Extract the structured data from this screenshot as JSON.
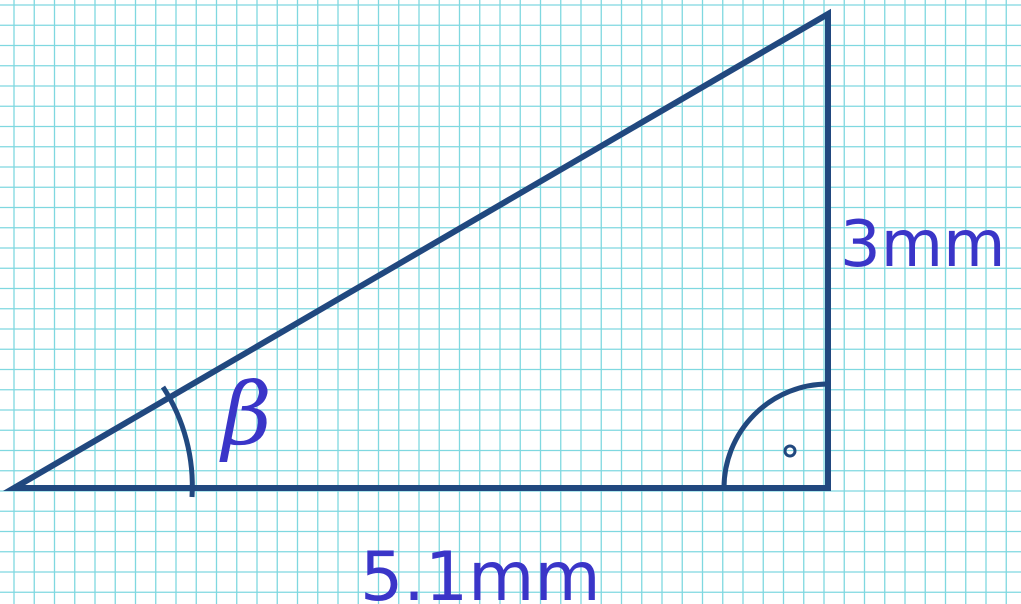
{
  "diagram": {
    "type": "right-triangle",
    "angle_label": "β",
    "base_label": "5.1mm",
    "height_label": "3mm",
    "colors": {
      "grid": "#7fd8e0",
      "lines": "#21487f",
      "text": "#3a35c8",
      "background": "#ffffff"
    }
  }
}
